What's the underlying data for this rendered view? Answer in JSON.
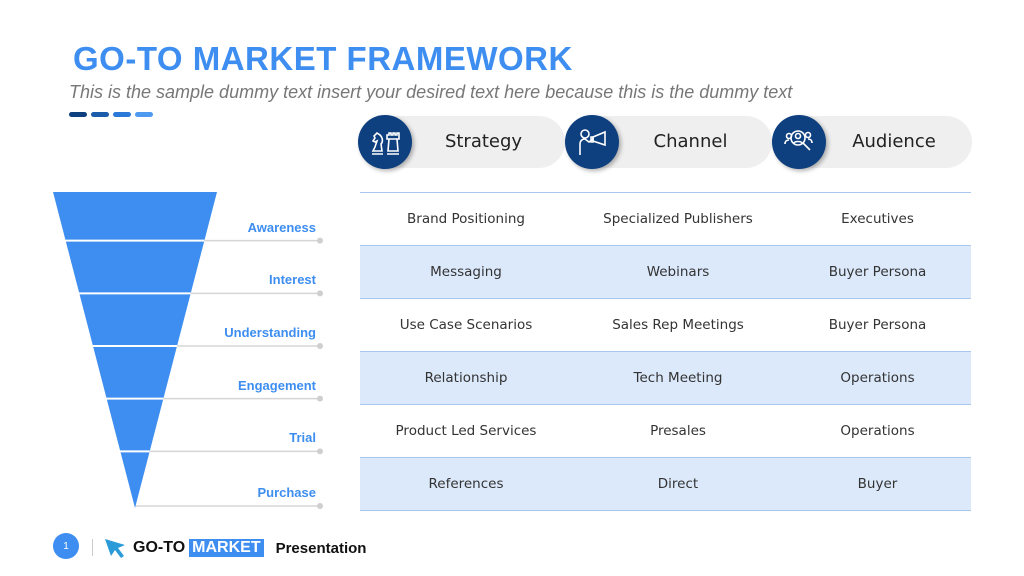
{
  "header": {
    "title": "GO-TO MARKET FRAMEWORK",
    "subtitle": "This is the sample dummy text insert your desired text here because this is the dummy text"
  },
  "dash_colors": [
    "#0e3f7e",
    "#1b5cab",
    "#2a78d8",
    "#4e9af0"
  ],
  "colors": {
    "accent": "#3d8ef0",
    "dark_blue": "#0e3f7e",
    "row_alt": "#dbe9fb"
  },
  "columns": [
    {
      "label": "Strategy",
      "icon": "chess-icon"
    },
    {
      "label": "Channel",
      "icon": "megaphone-icon"
    },
    {
      "label": "Audience",
      "icon": "audience-search-icon"
    }
  ],
  "rows": [
    [
      "Brand Positioning",
      "Specialized Publishers",
      "Executives"
    ],
    [
      "Messaging",
      "Webinars",
      "Buyer Persona"
    ],
    [
      "Use Case Scenarios",
      "Sales Rep Meetings",
      "Buyer Persona"
    ],
    [
      "Relationship",
      "Tech Meeting",
      "Operations"
    ],
    [
      "Product Led Services",
      "Presales",
      "Operations"
    ],
    [
      "References",
      "Direct",
      "Buyer"
    ]
  ],
  "funnel": {
    "stages": [
      "Awareness",
      "Interest",
      "Understanding",
      "Engagement",
      "Trial",
      "Purchase"
    ]
  },
  "footer": {
    "page": "1",
    "brand_a": "GO-TO",
    "brand_b": "MARKET",
    "brand_c": "Presentation"
  }
}
